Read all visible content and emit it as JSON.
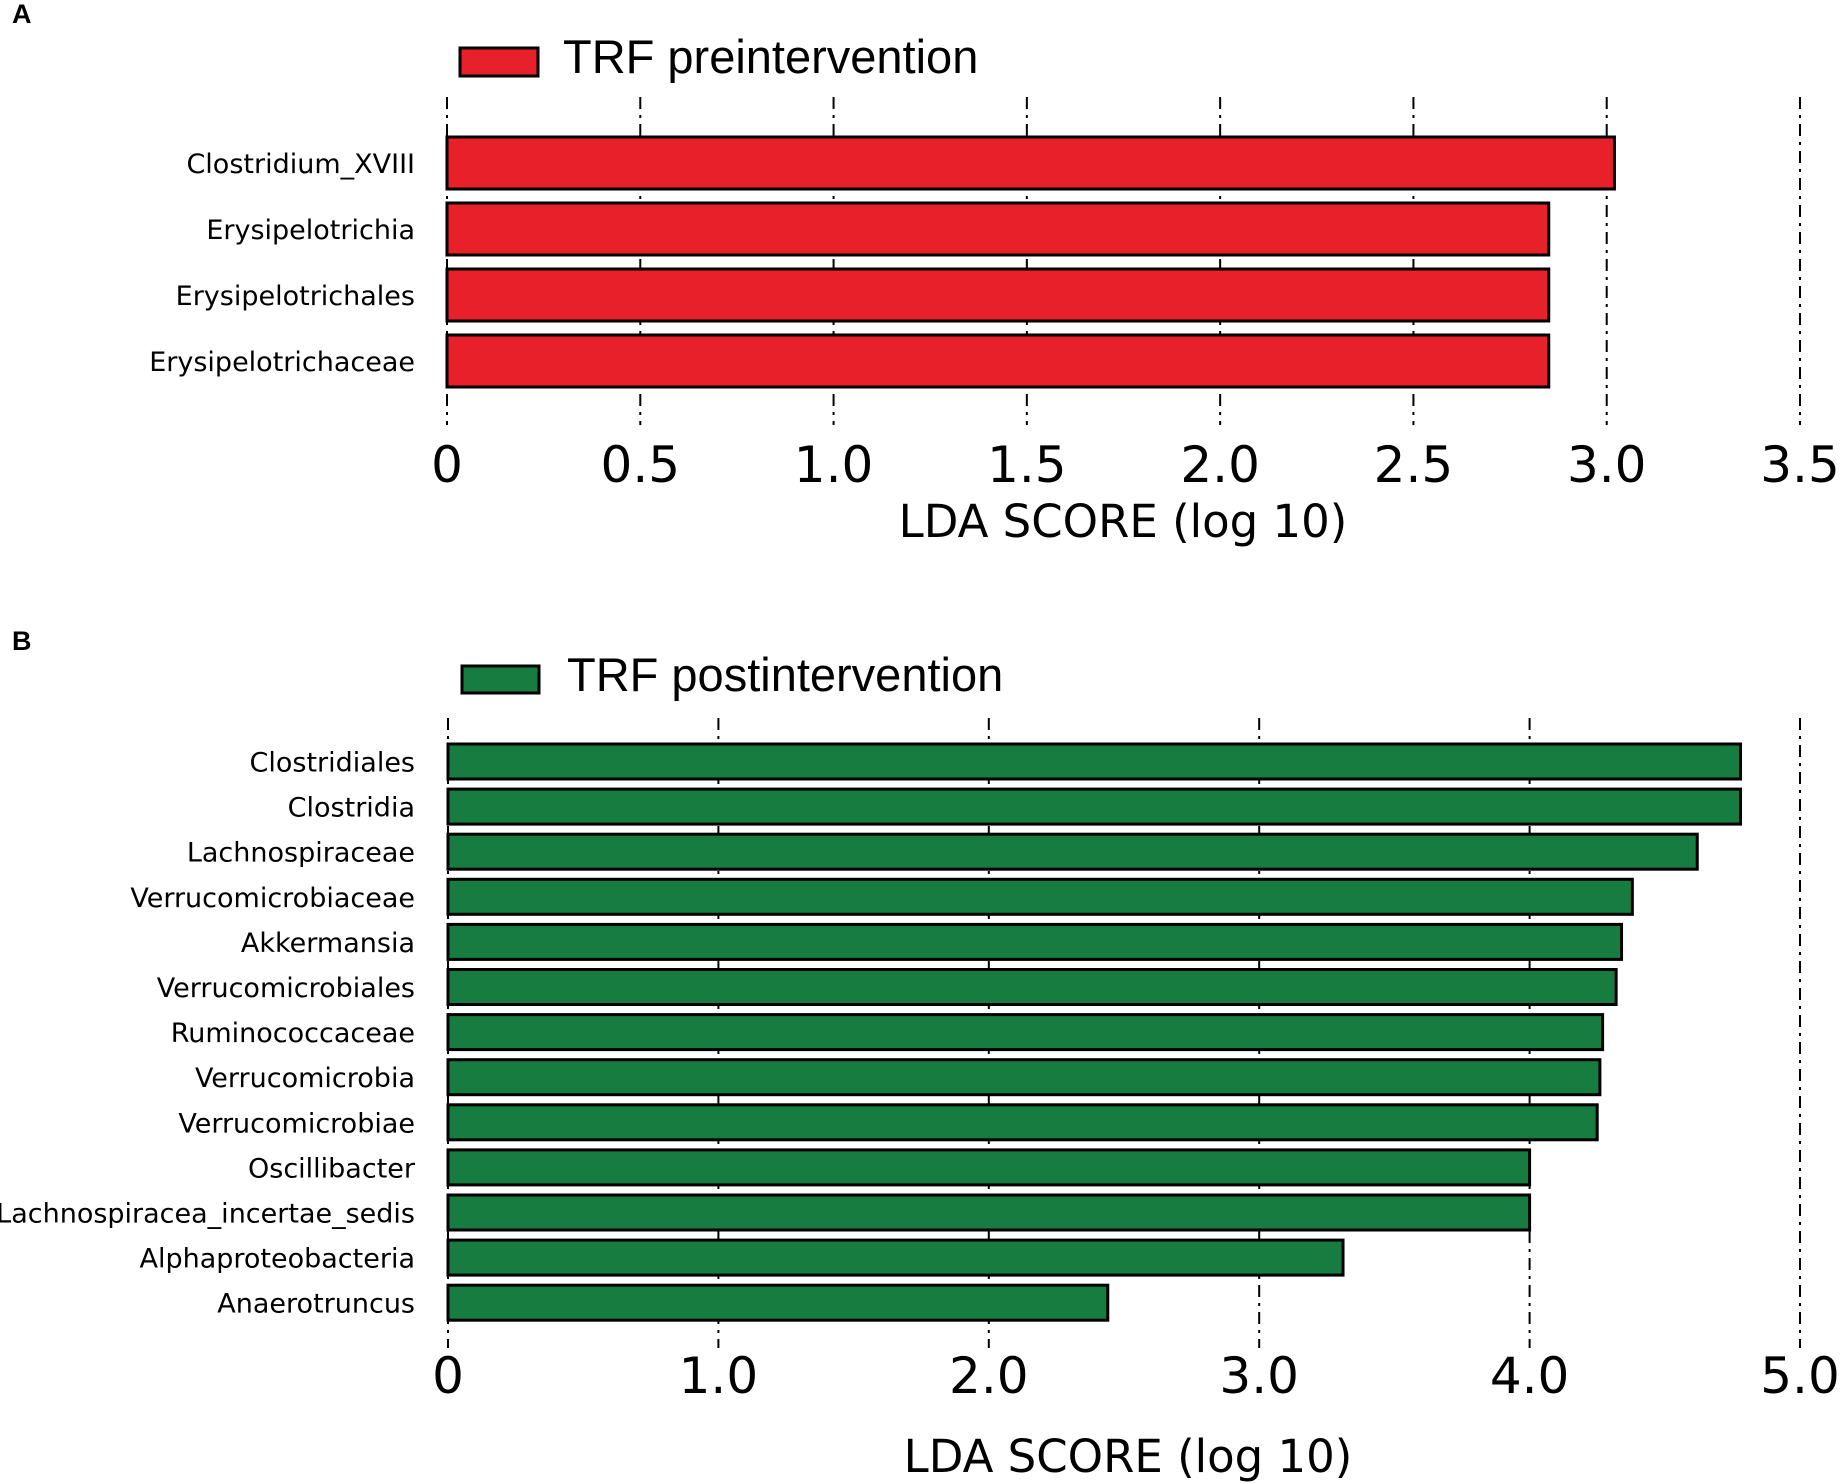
{
  "chart_data": [
    {
      "type": "bar",
      "orientation": "horizontal",
      "panel_label": "A",
      "legend_label": "TRF preintervention",
      "color": "#e8202a",
      "categories": [
        "Clostridium_XVIII",
        "Erysipelotrichia",
        "Erysipelotrichales",
        "Erysipelotrichaceae"
      ],
      "values": [
        3.02,
        2.85,
        2.85,
        2.85
      ],
      "xlabel": "LDA SCORE (log 10)",
      "xlim": [
        0,
        3.5
      ],
      "ticks": [
        0,
        0.5,
        1.0,
        1.5,
        2.0,
        2.5,
        3.0,
        3.5
      ],
      "tick_labels": [
        "0",
        "0.5",
        "1.0",
        "1.5",
        "2.0",
        "2.5",
        "3.0",
        "3.5"
      ],
      "grid": true,
      "legend_position": "top-left"
    },
    {
      "type": "bar",
      "orientation": "horizontal",
      "panel_label": "B",
      "legend_label": "TRF postintervention",
      "color": "#177c3f",
      "categories": [
        "Clostridiales",
        "Clostridia",
        "Lachnospiraceae",
        "Verrucomicrobiaceae",
        "Akkermansia",
        "Verrucomicrobiales",
        "Ruminococcaceae",
        "Verrucomicrobia",
        "Verrucomicrobiae",
        "Oscillibacter",
        "Lachnospiracea_incertae_sedis",
        "Alphaproteobacteria",
        "Anaerotruncus"
      ],
      "values": [
        4.78,
        4.78,
        4.62,
        4.38,
        4.34,
        4.32,
        4.27,
        4.26,
        4.25,
        4.0,
        4.0,
        3.31,
        2.44
      ],
      "xlabel": "LDA SCORE (log 10)",
      "xlim": [
        0,
        5.0
      ],
      "ticks": [
        0,
        1.0,
        2.0,
        3.0,
        4.0,
        5.0
      ],
      "tick_labels": [
        "0",
        "1.0",
        "2.0",
        "3.0",
        "4.0",
        "5.0"
      ],
      "grid": true,
      "legend_position": "top-left"
    }
  ]
}
